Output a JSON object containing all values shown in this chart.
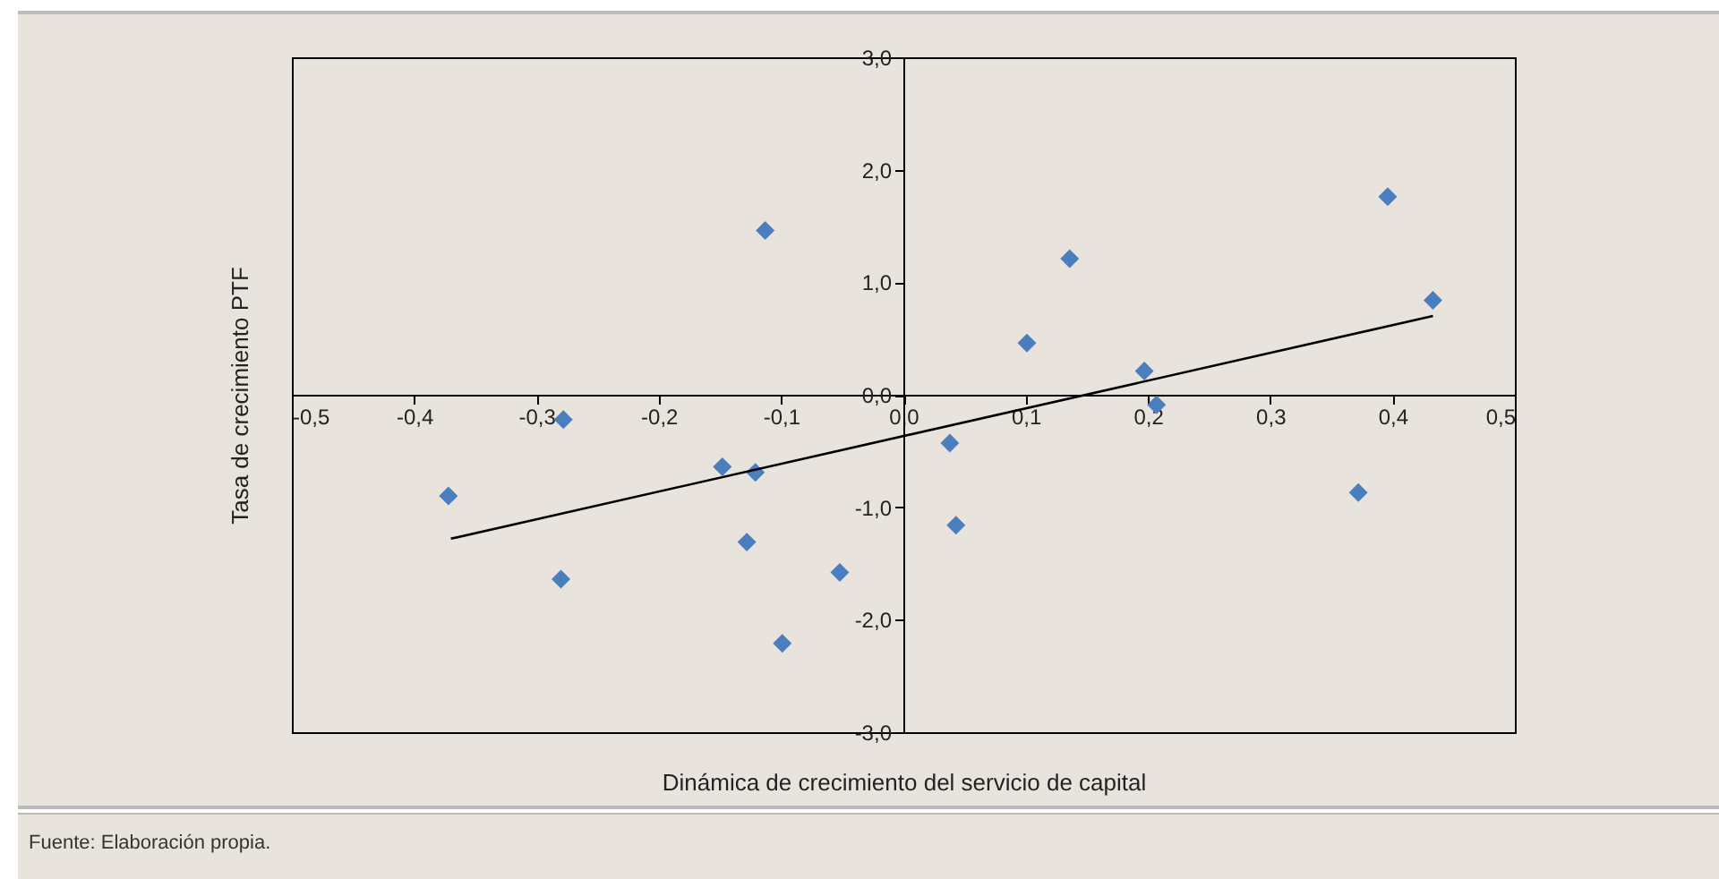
{
  "chart_data": {
    "type": "scatter",
    "xlabel": "Dinámica de crecimiento del servicio de capital",
    "ylabel": "Tasa de crecimiento PTF",
    "annotations": [
      "Fuente: Elaboración propia."
    ],
    "xlim": [
      -0.5,
      0.5
    ],
    "ylim": [
      -3,
      3
    ],
    "xticks": [
      {
        "value": -0.5,
        "label": "-0,5"
      },
      {
        "value": -0.4,
        "label": "-0,4"
      },
      {
        "value": -0.3,
        "label": "-0,3"
      },
      {
        "value": -0.2,
        "label": "-0,2"
      },
      {
        "value": -0.1,
        "label": "-0,1"
      },
      {
        "value": 0,
        "label": "0,0"
      },
      {
        "value": 0.1,
        "label": "0,1"
      },
      {
        "value": 0.2,
        "label": "0,2"
      },
      {
        "value": 0.3,
        "label": "0,3"
      },
      {
        "value": 0.4,
        "label": "0,4"
      },
      {
        "value": 0.5,
        "label": "0,5"
      }
    ],
    "yticks": [
      {
        "value": -3,
        "label": "-3,0"
      },
      {
        "value": -2,
        "label": "-2,0"
      },
      {
        "value": -1,
        "label": "-1,0"
      },
      {
        "value": 0,
        "label": "0,0"
      },
      {
        "value": 1,
        "label": "1,0"
      },
      {
        "value": 2,
        "label": "2,0"
      },
      {
        "value": 3,
        "label": "3,0"
      }
    ],
    "grid": false,
    "series": [
      {
        "marker": "diamond",
        "color": "#4a7ebf",
        "x": [
          -0.372,
          -0.278,
          -0.28,
          -0.148,
          -0.121,
          -0.128,
          -0.113,
          -0.052,
          -0.099,
          0.038,
          0.043,
          0.101,
          0.136,
          0.197,
          0.207,
          0.372,
          0.396,
          0.433
        ],
        "values": [
          -0.9,
          -0.22,
          -1.64,
          -0.64,
          -0.69,
          -1.31,
          1.46,
          -1.58,
          -2.21,
          -0.43,
          -1.16,
          0.46,
          1.21,
          0.21,
          -0.09,
          -0.87,
          1.76,
          0.84
        ]
      },
      {
        "type": "line",
        "color": "#000000",
        "line_style": "solid",
        "x": [
          -0.37,
          0.433
        ],
        "values": [
          -1.28,
          0.7
        ]
      }
    ]
  }
}
